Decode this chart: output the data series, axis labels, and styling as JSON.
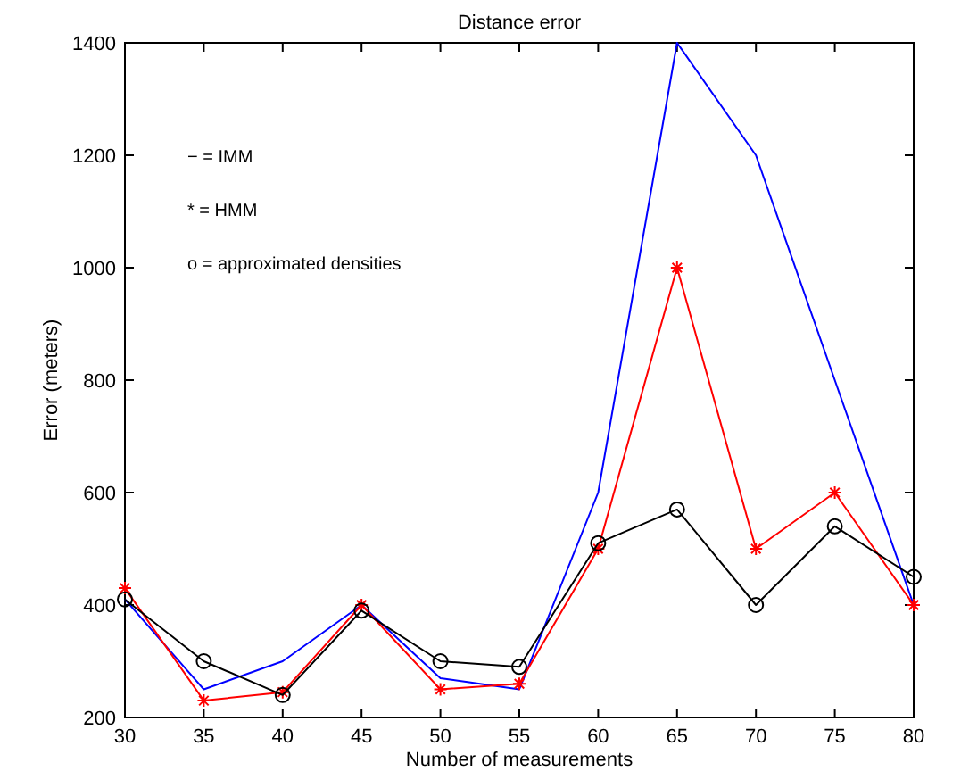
{
  "chart_data": {
    "type": "line",
    "title": "Distance error",
    "xlabel": "Number of measurements",
    "ylabel": "Error (meters)",
    "x": [
      30,
      35,
      40,
      45,
      50,
      55,
      60,
      65,
      70,
      75,
      80
    ],
    "series": [
      {
        "color": "#0000ff",
        "marker": "none",
        "values": [
          410,
          250,
          300,
          400,
          270,
          250,
          600,
          1400,
          1200,
          800,
          400
        ]
      },
      {
        "color": "#ff0000",
        "marker": "cross",
        "values": [
          430,
          230,
          245,
          400,
          250,
          260,
          500,
          1000,
          500,
          600,
          400
        ]
      },
      {
        "color": "#000000",
        "marker": "circle",
        "values": [
          410,
          300,
          240,
          390,
          300,
          290,
          510,
          570,
          400,
          540,
          450
        ]
      }
    ],
    "xlim": [
      30,
      80
    ],
    "xticks": [
      30,
      35,
      40,
      45,
      50,
      55,
      60,
      65,
      70,
      75,
      80
    ],
    "ylim": [
      200,
      1400
    ],
    "yticks": [
      200,
      400,
      600,
      800,
      1000,
      1200,
      1400
    ],
    "grid": false,
    "annotations": [
      "− = IMM",
      "* = HMM",
      "o = approximated densities"
    ]
  }
}
